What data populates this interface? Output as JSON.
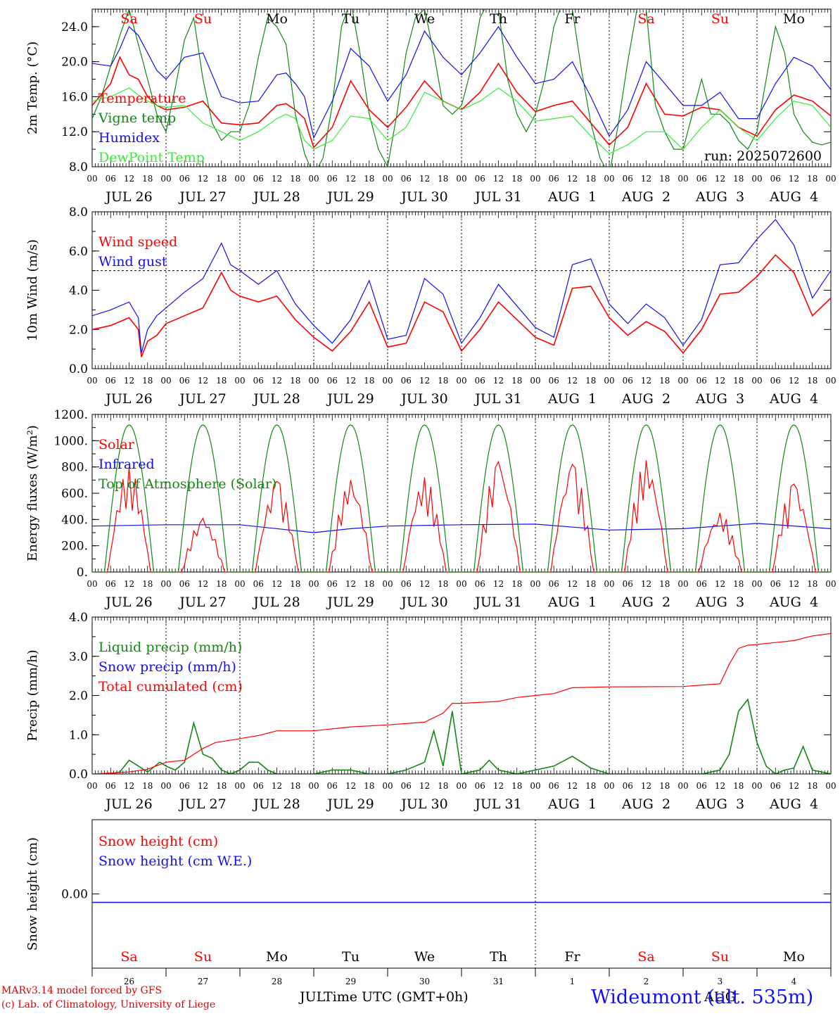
{
  "meta": {
    "run_label": "run: 2025072600",
    "model_line": "MARv3.14 model forced by GFS",
    "lab_line": "(c) Lab. of Climatology, University of Liege",
    "axis_title": "Time UTC (GMT+0h)",
    "station": "Wideumont (alt. 535m)",
    "footer_jul": "JUL",
    "footer_aug": "AUG"
  },
  "colors": {
    "red": "#ff0000",
    "green": "#118811",
    "blue": "#1010ee",
    "lightgreen": "#33ee33",
    "black": "#000000"
  },
  "time_axis": {
    "hour_ticks": [
      "00",
      "06",
      "12",
      "18"
    ],
    "day_labels": [
      "JUL 26",
      "JUL 27",
      "JUL 28",
      "JUL 29",
      "JUL 30",
      "JUL 31",
      "AUG  1",
      "AUG  2",
      "AUG  3",
      "AUG  4"
    ],
    "weekdays": [
      "Sa",
      "Su",
      "Mo",
      "Tu",
      "We",
      "Th",
      "Fr",
      "Sa",
      "Su",
      "Mo"
    ],
    "weekday_colors": [
      "#ff0000",
      "#ff0000",
      "#000000",
      "#000000",
      "#000000",
      "#000000",
      "#000000",
      "#ff0000",
      "#ff0000",
      "#000000"
    ],
    "day_numbers": [
      "26",
      "27",
      "28",
      "29",
      "30",
      "31",
      "1",
      "2",
      "3",
      "4"
    ]
  },
  "chart_data": [
    {
      "type": "line",
      "ylabel": "2m Temp. (°C)",
      "ylim": [
        8,
        26
      ],
      "yticks": [
        "8.0",
        "12.0",
        "16.0",
        "20.0",
        "24.0"
      ],
      "ytick_values": [
        8,
        12,
        16,
        20,
        24
      ],
      "x_unit": "hours since Jul 26 00 UTC",
      "series": [
        {
          "name": "Temperature",
          "color": "#ff0000",
          "x": [
            0,
            6,
            9,
            12,
            15,
            18,
            21,
            24,
            30,
            36,
            42,
            48,
            54,
            60,
            63,
            66,
            69,
            72,
            78,
            84,
            90,
            96,
            102,
            108,
            114,
            120,
            126,
            132,
            138,
            144,
            150,
            156,
            162,
            168,
            174,
            180,
            186,
            192,
            198,
            204,
            210,
            216,
            222,
            228,
            234,
            240
          ],
          "y": [
            15.0,
            17.5,
            20.5,
            18.5,
            18.0,
            16.0,
            15.0,
            14.5,
            14.8,
            15.5,
            13.0,
            12.8,
            13.0,
            15.0,
            15.2,
            14.5,
            13.5,
            10.2,
            12.5,
            17.8,
            14.5,
            12.5,
            14.8,
            17.8,
            15.5,
            14.5,
            16.5,
            19.8,
            16.5,
            14.3,
            15.0,
            15.5,
            13.0,
            10.5,
            12.5,
            17.5,
            14.0,
            13.8,
            14.8,
            14.5,
            12.5,
            11.5,
            14.5,
            16.2,
            15.5,
            13.8
          ]
        },
        {
          "name": "Vigne temp",
          "color": "#118811",
          "x": [
            0,
            3,
            6,
            9,
            12,
            15,
            18,
            21,
            24,
            27,
            30,
            33,
            36,
            39,
            42,
            45,
            48,
            51,
            54,
            57,
            60,
            63,
            66,
            69,
            72,
            75,
            78,
            81,
            84,
            87,
            90,
            93,
            96,
            99,
            102,
            105,
            108,
            111,
            114,
            117,
            120,
            123,
            126,
            129,
            132,
            135,
            138,
            141,
            144,
            147,
            150,
            153,
            156,
            159,
            162,
            165,
            168,
            171,
            174,
            177,
            180,
            183,
            186,
            189,
            192,
            195,
            198,
            201,
            204,
            207,
            210,
            213,
            216,
            219,
            222,
            225,
            228,
            231,
            234,
            237,
            240
          ],
          "y": [
            13.5,
            16,
            19.5,
            23,
            26,
            22,
            18,
            14,
            12,
            17,
            22.5,
            25,
            18,
            13,
            11,
            12,
            12,
            15,
            20.5,
            25,
            24,
            22,
            14,
            9.5,
            7,
            9,
            15,
            24,
            27,
            21,
            14,
            10,
            8,
            14,
            21,
            25,
            26,
            21,
            15,
            14,
            15,
            19,
            25,
            27,
            26,
            18,
            14,
            12,
            14,
            18,
            24,
            27,
            26,
            19,
            13,
            9,
            7,
            13,
            20,
            26,
            26,
            15,
            12,
            10,
            10,
            14,
            18,
            14,
            14,
            13,
            11,
            10,
            12,
            18,
            24,
            21,
            14,
            12,
            10.8,
            10.5,
            10.8
          ]
        },
        {
          "name": "Humidex",
          "color": "#1010ee",
          "x": [
            0,
            6,
            9,
            12,
            15,
            18,
            21,
            24,
            30,
            36,
            42,
            48,
            54,
            60,
            63,
            66,
            69,
            72,
            78,
            84,
            90,
            96,
            102,
            108,
            114,
            120,
            126,
            132,
            138,
            144,
            150,
            156,
            162,
            168,
            174,
            180,
            186,
            192,
            198,
            204,
            210,
            216,
            222,
            228,
            234,
            240
          ],
          "y": [
            19.8,
            19.5,
            21.5,
            24,
            23,
            21,
            19,
            18,
            20.5,
            21,
            16,
            15.3,
            15.5,
            18.5,
            18.7,
            17.5,
            16,
            11.3,
            15.5,
            21.5,
            19.5,
            15.5,
            18.5,
            23.5,
            20.5,
            18.5,
            21,
            24,
            20.5,
            17.5,
            18,
            20,
            16,
            11.5,
            14.5,
            20,
            17.5,
            15,
            15,
            16.5,
            13.5,
            13.5,
            17.5,
            20.5,
            19.5,
            16.8
          ]
        },
        {
          "name": "DewPoint Temp",
          "color": "#33ee33",
          "x": [
            0,
            6,
            9,
            12,
            15,
            18,
            21,
            24,
            30,
            36,
            42,
            48,
            54,
            60,
            63,
            66,
            69,
            72,
            78,
            84,
            90,
            96,
            102,
            108,
            114,
            120,
            126,
            132,
            138,
            144,
            150,
            156,
            162,
            168,
            174,
            180,
            186,
            192,
            198,
            204,
            210,
            216,
            222,
            228,
            234,
            240
          ],
          "y": [
            15.5,
            16.0,
            16.5,
            17.0,
            16.2,
            15.5,
            15.0,
            14.8,
            15.0,
            13.0,
            12.0,
            11.0,
            12.0,
            13.5,
            14.0,
            13.5,
            11.0,
            10.0,
            11.0,
            13.8,
            13.5,
            11.0,
            12.5,
            16.5,
            15.5,
            14.5,
            15.5,
            17.0,
            15.5,
            13.2,
            13.5,
            13.8,
            11.5,
            9.5,
            10.5,
            12.0,
            12.0,
            10.0,
            12.5,
            14.5,
            12.5,
            11.0,
            13.5,
            15.5,
            15.0,
            12.5
          ]
        }
      ]
    },
    {
      "type": "line",
      "ylabel": "10m Wind (m/s)",
      "ylim": [
        0,
        8
      ],
      "yticks": [
        "0.0",
        "2.0",
        "4.0",
        "6.0",
        "8.0"
      ],
      "ytick_values": [
        0,
        2,
        4,
        6,
        8
      ],
      "reference_line": 5.0,
      "series": [
        {
          "name": "Wind speed",
          "color": "#ff0000",
          "x": [
            0,
            6,
            12,
            15,
            16,
            18,
            21,
            24,
            30,
            36,
            42,
            45,
            48,
            54,
            60,
            66,
            72,
            78,
            84,
            90,
            96,
            102,
            108,
            114,
            120,
            126,
            132,
            138,
            144,
            150,
            156,
            162,
            168,
            174,
            180,
            186,
            192,
            198,
            204,
            210,
            216,
            222,
            228,
            234,
            240
          ],
          "y": [
            2.0,
            2.2,
            2.6,
            2.0,
            0.6,
            1.4,
            1.7,
            2.3,
            2.7,
            3.1,
            4.9,
            4.0,
            3.7,
            3.4,
            3.7,
            2.5,
            1.6,
            0.9,
            1.9,
            3.4,
            1.1,
            1.3,
            3.4,
            2.9,
            0.9,
            2.0,
            3.4,
            2.5,
            1.6,
            1.2,
            4.1,
            4.2,
            2.6,
            1.7,
            2.4,
            1.9,
            0.8,
            2.0,
            3.8,
            3.9,
            4.7,
            5.8,
            4.9,
            2.7,
            3.6
          ]
        },
        {
          "name": "Wind gust",
          "color": "#1010ee",
          "x": [
            0,
            6,
            12,
            15,
            16,
            18,
            21,
            24,
            30,
            36,
            42,
            45,
            48,
            54,
            60,
            66,
            72,
            78,
            84,
            90,
            96,
            102,
            108,
            114,
            120,
            126,
            132,
            138,
            144,
            150,
            156,
            162,
            168,
            174,
            180,
            186,
            192,
            198,
            204,
            210,
            216,
            222,
            228,
            234,
            240
          ],
          "y": [
            2.7,
            3.0,
            3.4,
            2.6,
            0.8,
            2.0,
            2.7,
            3.1,
            3.9,
            4.6,
            6.4,
            5.3,
            5.0,
            4.3,
            5.0,
            3.3,
            2.2,
            1.3,
            2.5,
            4.5,
            1.5,
            1.7,
            4.6,
            3.8,
            1.3,
            2.6,
            4.3,
            3.2,
            2.1,
            1.6,
            5.3,
            5.6,
            3.3,
            2.3,
            3.3,
            2.6,
            1.2,
            2.5,
            5.3,
            5.4,
            6.6,
            7.6,
            6.3,
            3.6,
            5.0
          ]
        }
      ]
    },
    {
      "type": "line",
      "ylabel": "Energy fluxes (W/m²)",
      "ylim": [
        0,
        1200
      ],
      "yticks": [
        "0.",
        "200.",
        "400.",
        "600.",
        "800.",
        "1000.",
        "1200."
      ],
      "ytick_values": [
        0,
        200,
        400,
        600,
        800,
        1000,
        1200
      ],
      "series": [
        {
          "name": "Solar",
          "color": "#ff0000",
          "peaks_hour_utc": [
            12,
            12,
            12,
            12,
            12,
            12,
            12,
            12,
            12,
            12
          ],
          "peaks": [
            800,
            410,
            690,
            700,
            720,
            840,
            820,
            850,
            450,
            670
          ]
        },
        {
          "name": "Infrared",
          "color": "#1010ee",
          "x": [
            0,
            24,
            48,
            72,
            84,
            96,
            120,
            144,
            168,
            192,
            216,
            240
          ],
          "y": [
            350,
            360,
            360,
            300,
            330,
            350,
            360,
            365,
            320,
            330,
            370,
            330
          ]
        },
        {
          "name": "Top of Atmosphere (Solar)",
          "color": "#118811",
          "daily_peak": 1120,
          "sunrise_utc": 4,
          "sunset_utc": 20
        }
      ]
    },
    {
      "type": "line",
      "ylabel": "Precip (mm/h)",
      "ylim": [
        0,
        4
      ],
      "yticks": [
        "0.0",
        "1.0",
        "2.0",
        "3.0",
        "4.0"
      ],
      "ytick_values": [
        0,
        1,
        2,
        3,
        4
      ],
      "series": [
        {
          "name": "Liquid precip (mm/h)",
          "color": "#118811",
          "x": [
            0,
            6,
            9,
            12,
            18,
            22,
            24,
            27,
            30,
            33,
            36,
            39,
            42,
            45,
            48,
            51,
            54,
            57,
            60,
            63,
            66,
            72,
            78,
            84,
            90,
            96,
            102,
            108,
            111,
            114,
            117,
            120,
            123,
            126,
            129,
            132,
            135,
            138,
            144,
            150,
            156,
            162,
            168,
            174,
            180,
            186,
            192,
            198,
            204,
            207,
            210,
            213,
            216,
            219,
            222,
            225,
            228,
            231,
            234,
            240
          ],
          "y": [
            0,
            0,
            0.05,
            0.35,
            0.05,
            0.3,
            0.2,
            0.1,
            0.3,
            1.3,
            0.5,
            0.4,
            0.1,
            0,
            0.1,
            0.3,
            0.3,
            0.1,
            0,
            0,
            0,
            0,
            0.1,
            0.1,
            0,
            0,
            0.1,
            0.3,
            1.1,
            0.2,
            1.6,
            0,
            0.05,
            0.1,
            0.35,
            0.1,
            0.05,
            0,
            0.1,
            0.2,
            0.45,
            0.15,
            0,
            0,
            0,
            0,
            0,
            0,
            0.1,
            0.5,
            1.6,
            1.9,
            0.8,
            0.2,
            0,
            0.1,
            0.15,
            0.7,
            0.1,
            0
          ]
        },
        {
          "name": "Snow precip (mm/h)",
          "color": "#1010ee",
          "x": [
            0,
            240
          ],
          "y": [
            0,
            0
          ]
        },
        {
          "name": "Total cumulated (cm)",
          "color": "#ff0000",
          "x": [
            0,
            12,
            18,
            24,
            30,
            36,
            40,
            48,
            54,
            60,
            72,
            84,
            96,
            108,
            114,
            117,
            120,
            132,
            138,
            144,
            150,
            156,
            168,
            192,
            204,
            207,
            210,
            213,
            216,
            222,
            228,
            234,
            240
          ],
          "y": [
            0,
            0.05,
            0.12,
            0.3,
            0.35,
            0.65,
            0.8,
            0.9,
            0.98,
            1.1,
            1.1,
            1.2,
            1.25,
            1.32,
            1.55,
            1.8,
            1.8,
            1.85,
            1.95,
            2.0,
            2.05,
            2.2,
            2.22,
            2.23,
            2.3,
            2.8,
            3.2,
            3.28,
            3.3,
            3.35,
            3.4,
            3.52,
            3.58
          ]
        }
      ]
    },
    {
      "type": "line",
      "ylabel": "Snow height (cm)",
      "yticks": [
        "0.00"
      ],
      "ytick_values": [
        0
      ],
      "series": [
        {
          "name": "Snow height (cm)",
          "color": "#ff0000",
          "x": [
            0,
            240
          ],
          "y": [
            0,
            0
          ]
        },
        {
          "name": "Snow height (cm W.E.)",
          "color": "#1010ee",
          "x": [
            0,
            240
          ],
          "y": [
            0,
            0
          ]
        }
      ]
    }
  ]
}
